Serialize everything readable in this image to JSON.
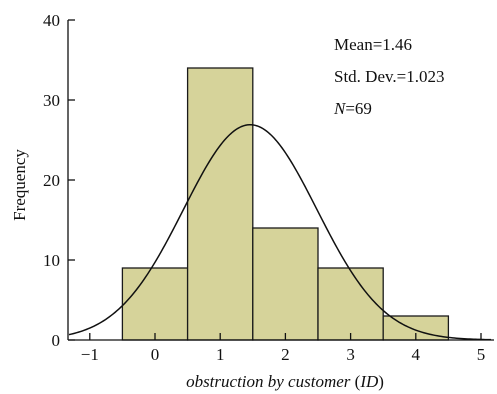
{
  "chart_data": {
    "type": "bar",
    "subtype": "histogram-with-normal-curve",
    "xlabel": {
      "main": "obstruction by customer",
      "paren_open": " (",
      "unit": "ID",
      "paren_close": ")"
    },
    "ylabel": "Frequency",
    "xlim": [
      -1.35,
      5.2
    ],
    "ylim": [
      0,
      40
    ],
    "x_ticks": [
      -1,
      0,
      1,
      2,
      3,
      4,
      5
    ],
    "x_tick_labels": [
      "−1",
      "0",
      "1",
      "2",
      "3",
      "4",
      "5"
    ],
    "y_ticks": [
      0,
      10,
      20,
      30,
      40
    ],
    "y_tick_labels": [
      "0",
      "10",
      "20",
      "30",
      "40"
    ],
    "bins": [
      {
        "start": -0.5,
        "end": 0.5,
        "value": 9
      },
      {
        "start": 0.5,
        "end": 1.5,
        "value": 34
      },
      {
        "start": 1.5,
        "end": 2.5,
        "value": 14
      },
      {
        "start": 2.5,
        "end": 3.5,
        "value": 9
      },
      {
        "start": 3.5,
        "end": 4.5,
        "value": 3
      }
    ],
    "normal_curve": {
      "mean": 1.46,
      "std": 1.023,
      "n": 69,
      "bin_width": 1
    },
    "stats": {
      "mean_label": "Mean=1.46",
      "std_label": "Std. Dev.=1.023",
      "n_symbol": "N",
      "n_value": "=69"
    },
    "colors": {
      "bar_fill": "#d6d39a",
      "stroke": "#1a1a1a"
    },
    "grid": false,
    "legend": "none"
  }
}
